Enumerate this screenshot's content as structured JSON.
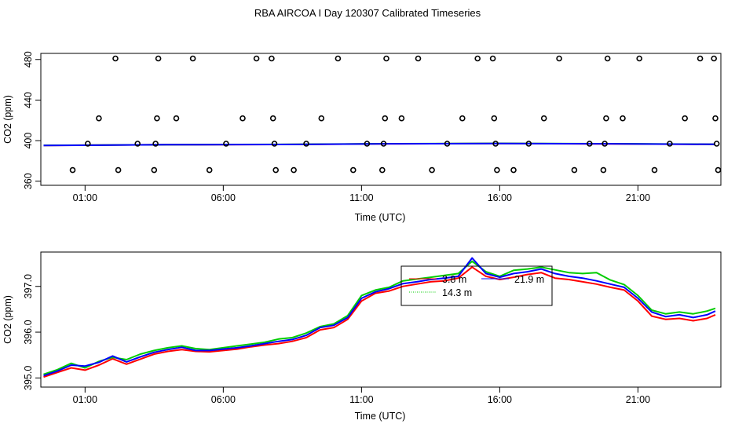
{
  "title": "RBA AIRCOA I  Day 120307  Calibrated Timeseries",
  "chart_data": [
    {
      "type": "scatter+line",
      "xlabel": "Time (UTC)",
      "ylabel": "CO2 (ppm)",
      "xlim": [
        -0.6,
        24.0
      ],
      "ylim": [
        356,
        486
      ],
      "xticks": [
        1,
        6,
        11,
        16,
        21
      ],
      "xtick_labels": [
        "01:00",
        "06:00",
        "11:00",
        "16:00",
        "21:00"
      ],
      "yticks": [
        360,
        400,
        440,
        480
      ],
      "ytick_labels": [
        "360",
        "400",
        "440",
        "480"
      ],
      "grid": false,
      "points": [
        {
          "x": 1.1,
          "y": 397
        },
        {
          "x": 1.5,
          "y": 422
        },
        {
          "x": 2.1,
          "y": 481
        },
        {
          "x": 0.55,
          "y": 371
        },
        {
          "x": 2.2,
          "y": 371
        },
        {
          "x": 2.9,
          "y": 397
        },
        {
          "x": 3.55,
          "y": 397
        },
        {
          "x": 3.6,
          "y": 422
        },
        {
          "x": 3.65,
          "y": 481
        },
        {
          "x": 3.5,
          "y": 371
        },
        {
          "x": 4.3,
          "y": 422
        },
        {
          "x": 4.9,
          "y": 481
        },
        {
          "x": 5.5,
          "y": 371
        },
        {
          "x": 6.1,
          "y": 397
        },
        {
          "x": 6.7,
          "y": 422
        },
        {
          "x": 7.2,
          "y": 481
        },
        {
          "x": 7.75,
          "y": 481
        },
        {
          "x": 7.8,
          "y": 422
        },
        {
          "x": 7.85,
          "y": 397
        },
        {
          "x": 7.9,
          "y": 371
        },
        {
          "x": 8.55,
          "y": 371
        },
        {
          "x": 9.0,
          "y": 397
        },
        {
          "x": 9.55,
          "y": 422
        },
        {
          "x": 10.15,
          "y": 481
        },
        {
          "x": 10.7,
          "y": 371
        },
        {
          "x": 11.2,
          "y": 397
        },
        {
          "x": 11.75,
          "y": 371
        },
        {
          "x": 11.8,
          "y": 397
        },
        {
          "x": 11.85,
          "y": 422
        },
        {
          "x": 11.9,
          "y": 481
        },
        {
          "x": 12.45,
          "y": 422
        },
        {
          "x": 13.05,
          "y": 481
        },
        {
          "x": 13.55,
          "y": 371
        },
        {
          "x": 14.1,
          "y": 397
        },
        {
          "x": 14.65,
          "y": 422
        },
        {
          "x": 15.2,
          "y": 481
        },
        {
          "x": 15.75,
          "y": 481
        },
        {
          "x": 15.8,
          "y": 422
        },
        {
          "x": 15.85,
          "y": 397
        },
        {
          "x": 15.9,
          "y": 371
        },
        {
          "x": 16.5,
          "y": 371
        },
        {
          "x": 17.05,
          "y": 397
        },
        {
          "x": 17.6,
          "y": 422
        },
        {
          "x": 18.15,
          "y": 481
        },
        {
          "x": 18.7,
          "y": 371
        },
        {
          "x": 19.25,
          "y": 397
        },
        {
          "x": 19.8,
          "y": 397
        },
        {
          "x": 19.85,
          "y": 422
        },
        {
          "x": 19.9,
          "y": 481
        },
        {
          "x": 19.75,
          "y": 371
        },
        {
          "x": 20.45,
          "y": 422
        },
        {
          "x": 21.05,
          "y": 481
        },
        {
          "x": 21.6,
          "y": 371
        },
        {
          "x": 22.15,
          "y": 397
        },
        {
          "x": 22.7,
          "y": 422
        },
        {
          "x": 23.25,
          "y": 481
        },
        {
          "x": 23.75,
          "y": 481
        },
        {
          "x": 23.8,
          "y": 422
        },
        {
          "x": 23.85,
          "y": 397
        },
        {
          "x": 23.9,
          "y": 371
        }
      ],
      "series": [
        {
          "color": "#ff0000",
          "x": [
            -0.5,
            4,
            8,
            12,
            16,
            20,
            23.8
          ],
          "y": [
            395.3,
            396.0,
            396.2,
            396.9,
            397.2,
            396.8,
            396.4
          ]
        },
        {
          "color": "#00cc00",
          "x": [
            -0.5,
            4,
            8,
            12,
            16,
            20,
            23.8
          ],
          "y": [
            395.4,
            396.1,
            396.3,
            397.0,
            397.3,
            397.0,
            396.5
          ]
        },
        {
          "color": "#0000ff",
          "x": [
            -0.5,
            4,
            8,
            12,
            16,
            20,
            23.8
          ],
          "y": [
            395.2,
            396.0,
            396.2,
            396.9,
            397.2,
            396.9,
            396.4
          ]
        }
      ]
    },
    {
      "type": "line",
      "xlabel": "Time (UTC)",
      "ylabel": "CO2 (ppm)",
      "xlim": [
        -0.6,
        24.0
      ],
      "ylim": [
        394.8,
        397.75
      ],
      "xticks": [
        1,
        6,
        11,
        16,
        21
      ],
      "xtick_labels": [
        "01:00",
        "06:00",
        "11:00",
        "16:00",
        "21:00"
      ],
      "yticks": [
        395.0,
        396.0,
        397.0
      ],
      "ytick_labels": [
        "395.0",
        "396.0",
        "397.0"
      ],
      "grid": false,
      "legend": {
        "position": "top-center",
        "entries": [
          {
            "label": "3.8 m",
            "color": "#ff0000"
          },
          {
            "label": "21.9 m",
            "color": "#0000ff"
          },
          {
            "label": "14.3 m",
            "color": "#00cc00"
          }
        ]
      },
      "series": [
        {
          "name": "3.8 m",
          "color": "#ff0000",
          "x": [
            -0.5,
            0.0,
            0.5,
            1.0,
            1.5,
            2.0,
            2.5,
            3.0,
            3.5,
            4.0,
            4.5,
            5.0,
            5.5,
            6.0,
            6.5,
            7.0,
            7.5,
            8.0,
            8.5,
            9.0,
            9.5,
            10.0,
            10.5,
            11.0,
            11.5,
            12.0,
            12.5,
            13.0,
            13.5,
            14.0,
            14.5,
            15.0,
            15.5,
            16.0,
            16.5,
            17.0,
            17.5,
            18.0,
            18.5,
            19.0,
            19.5,
            20.0,
            20.5,
            21.0,
            21.5,
            22.0,
            22.5,
            23.0,
            23.5,
            23.8
          ],
          "y": [
            395.02,
            395.12,
            395.22,
            395.17,
            395.28,
            395.42,
            395.3,
            395.41,
            395.52,
            395.58,
            395.62,
            395.58,
            395.57,
            395.6,
            395.63,
            395.68,
            395.72,
            395.75,
            395.8,
            395.88,
            396.05,
            396.1,
            396.28,
            396.68,
            396.85,
            396.9,
            397.0,
            397.05,
            397.1,
            397.12,
            397.18,
            397.42,
            397.22,
            397.15,
            397.2,
            397.26,
            397.3,
            397.18,
            397.15,
            397.1,
            397.05,
            396.98,
            396.92,
            396.68,
            396.35,
            396.28,
            396.3,
            396.25,
            396.3,
            396.38
          ]
        },
        {
          "name": "14.3 m",
          "color": "#00cc00",
          "x": [
            -0.5,
            0.0,
            0.5,
            1.0,
            1.5,
            2.0,
            2.5,
            3.0,
            3.5,
            4.0,
            4.5,
            5.0,
            5.5,
            6.0,
            6.5,
            7.0,
            7.5,
            8.0,
            8.5,
            9.0,
            9.5,
            10.0,
            10.5,
            11.0,
            11.5,
            12.0,
            12.5,
            13.0,
            13.5,
            14.0,
            14.5,
            15.0,
            15.5,
            16.0,
            16.5,
            17.0,
            17.5,
            18.0,
            18.5,
            19.0,
            19.5,
            20.0,
            20.5,
            21.0,
            21.5,
            22.0,
            22.5,
            23.0,
            23.5,
            23.8
          ],
          "y": [
            395.08,
            395.18,
            395.32,
            395.22,
            395.36,
            395.45,
            395.4,
            395.52,
            395.6,
            395.66,
            395.7,
            395.64,
            395.62,
            395.66,
            395.7,
            395.74,
            395.78,
            395.85,
            395.88,
            395.98,
            396.12,
            396.18,
            396.36,
            396.8,
            396.92,
            396.98,
            397.12,
            397.16,
            397.2,
            397.24,
            397.28,
            397.55,
            397.32,
            397.22,
            397.35,
            397.38,
            397.42,
            397.36,
            397.3,
            397.28,
            397.3,
            397.14,
            397.04,
            396.8,
            396.48,
            396.4,
            396.44,
            396.4,
            396.46,
            396.52
          ]
        },
        {
          "name": "21.9 m",
          "color": "#0000ff",
          "x": [
            -0.5,
            0.0,
            0.5,
            1.0,
            1.5,
            2.0,
            2.5,
            3.0,
            3.5,
            4.0,
            4.5,
            5.0,
            5.5,
            6.0,
            6.5,
            7.0,
            7.5,
            8.0,
            8.5,
            9.0,
            9.5,
            10.0,
            10.5,
            11.0,
            11.5,
            12.0,
            12.5,
            13.0,
            13.5,
            14.0,
            14.5,
            15.0,
            15.5,
            16.0,
            16.5,
            17.0,
            17.5,
            18.0,
            18.5,
            19.0,
            19.5,
            20.0,
            20.5,
            21.0,
            21.5,
            22.0,
            22.5,
            23.0,
            23.5,
            23.8
          ],
          "y": [
            395.05,
            395.15,
            395.28,
            395.26,
            395.34,
            395.48,
            395.35,
            395.46,
            395.56,
            395.62,
            395.67,
            395.6,
            395.6,
            395.63,
            395.66,
            395.7,
            395.75,
            395.8,
            395.84,
            395.93,
            396.1,
            396.15,
            396.32,
            396.74,
            396.88,
            396.95,
            397.06,
            397.1,
            397.15,
            397.18,
            397.22,
            397.62,
            397.28,
            397.2,
            397.28,
            397.32,
            397.38,
            397.28,
            397.22,
            397.18,
            397.12,
            397.05,
            396.98,
            396.74,
            396.44,
            396.34,
            396.38,
            396.32,
            396.38,
            396.46
          ]
        }
      ]
    }
  ]
}
